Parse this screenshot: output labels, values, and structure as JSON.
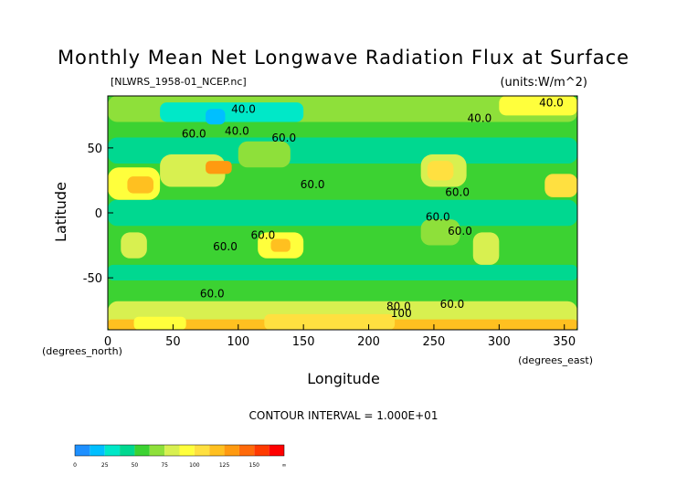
{
  "chart_data": {
    "type": "heatmap",
    "title": "Monthly Mean Net Longwave Radiation Flux at Surface",
    "subtitle_left": "[NLWRS_1958-01_NCEP.nc]",
    "subtitle_right": "(units:W/m^2)",
    "xlabel": "Longitude",
    "ylabel": "Latitude",
    "x_unit": "(degrees_east)",
    "y_unit": "(degrees_north)",
    "xlim": [
      0,
      360
    ],
    "ylim": [
      -90,
      90
    ],
    "x_ticks": [
      0,
      50,
      100,
      150,
      200,
      250,
      300,
      350
    ],
    "y_ticks": [
      50,
      0,
      -50
    ],
    "contour_interval_text": "CONTOUR INTERVAL = 1.000E+01",
    "contour_labels": [
      {
        "text": "40.0",
        "lon": 104,
        "lat": 77
      },
      {
        "text": "40.0",
        "lon": 99,
        "lat": 60
      },
      {
        "text": "60.0",
        "lon": 66,
        "lat": 58
      },
      {
        "text": "60.0",
        "lon": 135,
        "lat": 55
      },
      {
        "text": "60.0",
        "lon": 157,
        "lat": 19
      },
      {
        "text": "40.0",
        "lon": 285,
        "lat": 70
      },
      {
        "text": "40.0",
        "lon": 340,
        "lat": 82
      },
      {
        "text": "60.0",
        "lon": 268,
        "lat": 13
      },
      {
        "text": "60.0",
        "lon": 253,
        "lat": -6
      },
      {
        "text": "60.0",
        "lon": 270,
        "lat": -17
      },
      {
        "text": "60.0",
        "lon": 119,
        "lat": -20
      },
      {
        "text": "60.0",
        "lon": 90,
        "lat": -29
      },
      {
        "text": "60.0",
        "lon": 80,
        "lat": -65
      },
      {
        "text": "80.0",
        "lon": 223,
        "lat": -75
      },
      {
        "text": "100",
        "lon": 225,
        "lat": -80
      },
      {
        "text": "60.0",
        "lon": 264,
        "lat": -73
      }
    ],
    "colorbar": {
      "ticks": [
        "0",
        "25",
        "50",
        "75",
        "100",
        "125",
        "150",
        "∞"
      ],
      "colors": [
        "#1e90ff",
        "#00bfff",
        "#00e8c8",
        "#00d890",
        "#3cd232",
        "#8ee03a",
        "#d8f050",
        "#ffff3c",
        "#ffe040",
        "#ffc020",
        "#ff9a10",
        "#ff6a0a",
        "#ff3a00",
        "#ff0000"
      ]
    },
    "regions": [
      {
        "lon": [
          0,
          360
        ],
        "lat": [
          -90,
          90
        ],
        "value": 55
      },
      {
        "lon": [
          0,
          360
        ],
        "lat": [
          -10,
          10
        ],
        "value": 40
      },
      {
        "lon": [
          0,
          360
        ],
        "lat": [
          38,
          58
        ],
        "value": 45
      },
      {
        "lon": [
          0,
          360
        ],
        "lat": [
          -52,
          -40
        ],
        "value": 45
      },
      {
        "lon": [
          0,
          360
        ],
        "lat": [
          -66,
          -54
        ],
        "value": 55
      },
      {
        "lon": [
          0,
          360
        ],
        "lat": [
          -90,
          -68
        ],
        "value": 85
      },
      {
        "lon": [
          0,
          360
        ],
        "lat": [
          -90,
          -82
        ],
        "value": 120
      },
      {
        "lon": [
          0,
          360
        ],
        "lat": [
          70,
          90
        ],
        "value": 70
      },
      {
        "lon": [
          0,
          40
        ],
        "lat": [
          10,
          35
        ],
        "value": 90
      },
      {
        "lon": [
          15,
          35
        ],
        "lat": [
          15,
          28
        ],
        "value": 120
      },
      {
        "lon": [
          335,
          360
        ],
        "lat": [
          12,
          30
        ],
        "value": 100
      },
      {
        "lon": [
          40,
          90
        ],
        "lat": [
          20,
          45
        ],
        "value": 85
      },
      {
        "lon": [
          75,
          95
        ],
        "lat": [
          30,
          40
        ],
        "value": 135
      },
      {
        "lon": [
          100,
          140
        ],
        "lat": [
          35,
          55
        ],
        "value": 70
      },
      {
        "lon": [
          240,
          275
        ],
        "lat": [
          20,
          45
        ],
        "value": 85
      },
      {
        "lon": [
          245,
          265
        ],
        "lat": [
          25,
          40
        ],
        "value": 100
      },
      {
        "lon": [
          115,
          150
        ],
        "lat": [
          -35,
          -15
        ],
        "value": 95
      },
      {
        "lon": [
          125,
          140
        ],
        "lat": [
          -30,
          -20
        ],
        "value": 120
      },
      {
        "lon": [
          10,
          30
        ],
        "lat": [
          -35,
          -15
        ],
        "value": 80
      },
      {
        "lon": [
          280,
          300
        ],
        "lat": [
          -40,
          -15
        ],
        "value": 85
      },
      {
        "lon": [
          240,
          270
        ],
        "lat": [
          -25,
          -5
        ],
        "value": 65
      },
      {
        "lon": [
          40,
          150
        ],
        "lat": [
          70,
          85
        ],
        "value": 30
      },
      {
        "lon": [
          75,
          90
        ],
        "lat": [
          68,
          80
        ],
        "value": 15
      },
      {
        "lon": [
          300,
          360
        ],
        "lat": [
          75,
          90
        ],
        "value": 90
      },
      {
        "lon": [
          120,
          220
        ],
        "lat": [
          -90,
          -78
        ],
        "value": 110
      },
      {
        "lon": [
          20,
          60
        ],
        "lat": [
          -90,
          -80
        ],
        "value": 95
      }
    ]
  }
}
